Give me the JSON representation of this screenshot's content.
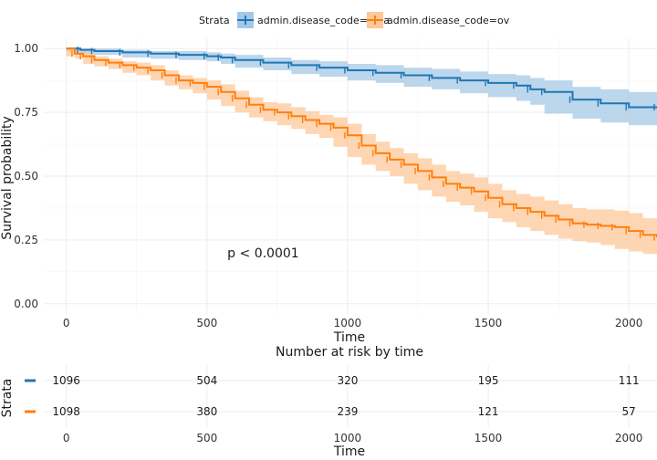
{
  "chart_data": [
    {
      "type": "line",
      "title": "",
      "xlabel": "Time",
      "ylabel": "Survival probability",
      "xlim": [
        -80,
        2100
      ],
      "ylim": [
        -0.04,
        1.04
      ],
      "x_ticks": [
        0,
        500,
        1000,
        1500,
        2000
      ],
      "y_ticks": [
        0.0,
        0.25,
        0.5,
        0.75,
        1.0
      ],
      "x_tick_labels": [
        "0",
        "500",
        "1000",
        "1500",
        "2000"
      ],
      "y_tick_labels": [
        "0.00",
        "0.25",
        "0.50",
        "0.75",
        "1.00"
      ],
      "grid": true,
      "legend": {
        "title": "Strata",
        "position": "top"
      },
      "annotation": "p < 0.0001",
      "annotation_at": [
        700,
        0.2
      ],
      "series": [
        {
          "name": "admin.disease_code=brca",
          "color": "#1f77b4",
          "band_color": "#a6c8e6",
          "x": [
            0,
            50,
            100,
            200,
            300,
            400,
            500,
            550,
            600,
            700,
            800,
            900,
            1000,
            1100,
            1200,
            1300,
            1400,
            1500,
            1600,
            1650,
            1700,
            1800,
            1900,
            2000,
            2100
          ],
          "y": [
            1.0,
            0.995,
            0.99,
            0.985,
            0.98,
            0.975,
            0.97,
            0.965,
            0.955,
            0.945,
            0.935,
            0.925,
            0.915,
            0.905,
            0.895,
            0.885,
            0.875,
            0.865,
            0.855,
            0.84,
            0.83,
            0.8,
            0.785,
            0.77,
            0.77
          ],
          "lower": [
            1.0,
            0.99,
            0.98,
            0.975,
            0.965,
            0.96,
            0.955,
            0.95,
            0.94,
            0.925,
            0.915,
            0.9,
            0.89,
            0.875,
            0.865,
            0.85,
            0.84,
            0.825,
            0.81,
            0.795,
            0.78,
            0.745,
            0.725,
            0.71,
            0.7
          ],
          "upper": [
            1.0,
            1.0,
            1.0,
            0.995,
            0.99,
            0.99,
            0.985,
            0.98,
            0.975,
            0.965,
            0.955,
            0.95,
            0.94,
            0.935,
            0.925,
            0.92,
            0.91,
            0.9,
            0.895,
            0.885,
            0.875,
            0.85,
            0.84,
            0.83,
            0.83
          ]
        },
        {
          "name": "admin.disease_code=ov",
          "color": "#ff7f0e",
          "band_color": "#fdc89a",
          "x": [
            0,
            30,
            60,
            100,
            150,
            200,
            250,
            300,
            350,
            400,
            450,
            500,
            550,
            600,
            650,
            700,
            750,
            800,
            850,
            900,
            950,
            1000,
            1050,
            1100,
            1150,
            1200,
            1250,
            1300,
            1350,
            1400,
            1450,
            1500,
            1550,
            1600,
            1650,
            1700,
            1750,
            1800,
            1850,
            1900,
            1950,
            2000,
            2050,
            2100
          ],
          "y": [
            1.0,
            0.98,
            0.97,
            0.955,
            0.945,
            0.935,
            0.925,
            0.915,
            0.895,
            0.875,
            0.865,
            0.85,
            0.83,
            0.805,
            0.78,
            0.76,
            0.75,
            0.735,
            0.72,
            0.705,
            0.69,
            0.66,
            0.62,
            0.59,
            0.565,
            0.545,
            0.52,
            0.495,
            0.47,
            0.455,
            0.44,
            0.415,
            0.39,
            0.375,
            0.36,
            0.345,
            0.33,
            0.315,
            0.31,
            0.305,
            0.3,
            0.285,
            0.27,
            0.26
          ],
          "lower": [
            1.0,
            0.97,
            0.96,
            0.94,
            0.93,
            0.92,
            0.905,
            0.895,
            0.875,
            0.855,
            0.84,
            0.825,
            0.8,
            0.775,
            0.75,
            0.73,
            0.715,
            0.7,
            0.685,
            0.665,
            0.65,
            0.615,
            0.575,
            0.545,
            0.52,
            0.5,
            0.47,
            0.445,
            0.42,
            0.4,
            0.385,
            0.36,
            0.335,
            0.32,
            0.3,
            0.285,
            0.27,
            0.255,
            0.245,
            0.24,
            0.23,
            0.215,
            0.205,
            0.195
          ],
          "upper": [
            1.0,
            0.99,
            0.985,
            0.97,
            0.96,
            0.95,
            0.945,
            0.935,
            0.915,
            0.895,
            0.885,
            0.875,
            0.86,
            0.835,
            0.81,
            0.79,
            0.785,
            0.77,
            0.755,
            0.74,
            0.73,
            0.705,
            0.665,
            0.635,
            0.61,
            0.59,
            0.57,
            0.545,
            0.52,
            0.51,
            0.495,
            0.47,
            0.445,
            0.43,
            0.42,
            0.405,
            0.39,
            0.375,
            0.37,
            0.37,
            0.365,
            0.355,
            0.335,
            0.32
          ]
        }
      ]
    },
    {
      "type": "table",
      "title": "Number at risk by time",
      "xlabel": "Time",
      "ylabel": "Strata",
      "x_ticks": [
        0,
        500,
        1000,
        1500,
        2000
      ],
      "x_tick_labels": [
        "0",
        "500",
        "1000",
        "1500",
        "2000"
      ],
      "rows": [
        {
          "strata": "admin.disease_code=brca",
          "color": "#1f77b4",
          "counts": [
            "1096",
            "504",
            "320",
            "195",
            "111"
          ]
        },
        {
          "strata": "admin.disease_code=ov",
          "color": "#ff7f0e",
          "counts": [
            "1098",
            "380",
            "239",
            "121",
            "57"
          ]
        }
      ]
    }
  ]
}
